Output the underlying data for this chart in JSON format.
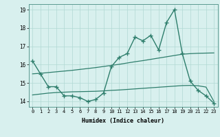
{
  "xlabel": "Humidex (Indice chaleur)",
  "x": [
    0,
    1,
    2,
    3,
    4,
    5,
    6,
    7,
    8,
    9,
    10,
    11,
    12,
    13,
    14,
    15,
    16,
    17,
    18,
    19,
    20,
    21,
    22,
    23
  ],
  "y_main": [
    16.2,
    15.5,
    14.8,
    14.8,
    14.3,
    14.3,
    14.2,
    14.0,
    14.1,
    14.45,
    15.9,
    16.4,
    16.6,
    17.5,
    17.3,
    17.6,
    16.8,
    18.3,
    19.0,
    16.6,
    15.1,
    14.6,
    14.3,
    13.9
  ],
  "y_upper": [
    15.5,
    15.53,
    15.57,
    15.61,
    15.65,
    15.69,
    15.74,
    15.79,
    15.84,
    15.9,
    15.96,
    16.02,
    16.09,
    16.16,
    16.22,
    16.29,
    16.36,
    16.43,
    16.5,
    16.57,
    16.6,
    16.62,
    16.63,
    16.64
  ],
  "y_lower": [
    14.35,
    14.4,
    14.45,
    14.48,
    14.5,
    14.52,
    14.53,
    14.54,
    14.55,
    14.57,
    14.6,
    14.62,
    14.65,
    14.68,
    14.71,
    14.74,
    14.77,
    14.8,
    14.83,
    14.86,
    14.87,
    14.85,
    14.78,
    14.0
  ],
  "ylim": [
    13.7,
    19.3
  ],
  "xlim": [
    -0.5,
    23.5
  ],
  "yticks": [
    14,
    15,
    16,
    17,
    18,
    19
  ],
  "xticks": [
    0,
    1,
    2,
    3,
    4,
    5,
    6,
    7,
    8,
    9,
    10,
    11,
    12,
    13,
    14,
    15,
    16,
    17,
    18,
    19,
    20,
    21,
    22,
    23
  ],
  "line_color": "#2d7d6b",
  "bg_color": "#d8f0ee",
  "grid_color": "#b0d8d4"
}
